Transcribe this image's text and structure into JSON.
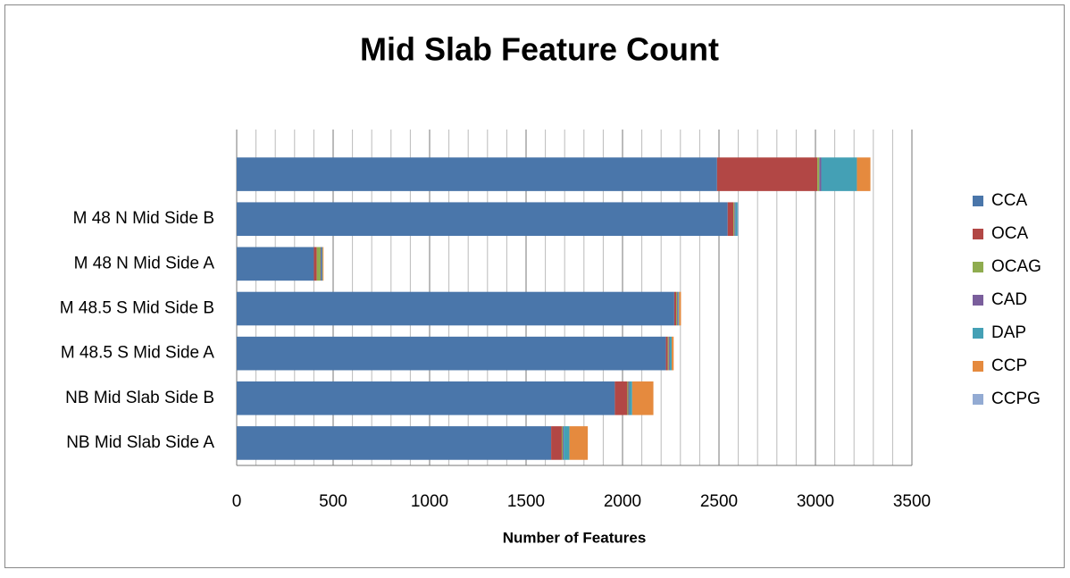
{
  "chart_data": {
    "type": "stacked-bar-horizontal",
    "title": "Mid Slab Feature Count",
    "x_label": "Number of Features",
    "categories": [
      null,
      "M 48 N Mid Side B",
      "M 48 N Mid Side A",
      "M 48.5 S Mid Side B",
      "M 48.5 S Mid Side A",
      "NB Mid Slab Side B",
      "NB Mid Slab Side A"
    ],
    "series": [
      {
        "name": "CCA",
        "color": "#4a76aa",
        "values": [
          2490,
          2545,
          400,
          2268,
          2225,
          1960,
          1630
        ]
      },
      {
        "name": "OCA",
        "color": "#b24745",
        "values": [
          520,
          30,
          15,
          10,
          10,
          65,
          55
        ]
      },
      {
        "name": "OCAG",
        "color": "#8fac4f",
        "values": [
          10,
          5,
          20,
          5,
          5,
          5,
          5
        ]
      },
      {
        "name": "CAD",
        "color": "#7a5e9c",
        "values": [
          10,
          5,
          5,
          5,
          5,
          5,
          5
        ]
      },
      {
        "name": "DAP",
        "color": "#44a0b5",
        "values": [
          185,
          10,
          5,
          5,
          10,
          15,
          30
        ]
      },
      {
        "name": "CCP",
        "color": "#e58a3e",
        "values": [
          70,
          0,
          5,
          10,
          10,
          110,
          95
        ]
      },
      {
        "name": "CCPG",
        "color": "#93abd3",
        "values": [
          0,
          5,
          0,
          0,
          0,
          0,
          0
        ]
      }
    ],
    "xlim": [
      0,
      3500
    ],
    "xticks": [
      0,
      500,
      1000,
      1500,
      2000,
      2500,
      3000,
      3500
    ],
    "xminorticks": [
      100,
      200,
      300,
      400,
      600,
      700,
      800,
      900,
      1100,
      1200,
      1300,
      1400,
      1600,
      1700,
      1800,
      1900,
      2100,
      2200,
      2300,
      2400,
      2600,
      2700,
      2800,
      2900,
      3100,
      3200,
      3300,
      3400
    ],
    "grid": true,
    "legend": "right"
  }
}
